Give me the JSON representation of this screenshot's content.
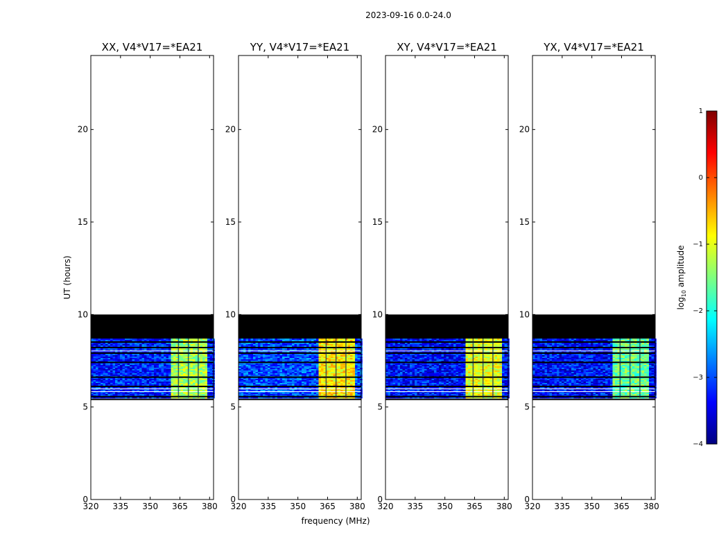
{
  "figure": {
    "suptitle": "2023-09-16 0.0-24.0",
    "xlabel": "frequency (MHz)",
    "ylabel": "UT (hours)"
  },
  "colorbar": {
    "label_main": "log",
    "label_sub": "10",
    "label_tail": " amplitude",
    "range": [
      -4,
      1
    ],
    "ticks": [
      "1",
      "0",
      "−1",
      "−2",
      "−3",
      "−4"
    ],
    "tick_values": [
      1,
      0,
      -1,
      -2,
      -3,
      -4
    ],
    "colormap": [
      "#00007f",
      "#0000ff",
      "#007fff",
      "#00ffff",
      "#7fff7f",
      "#ffff00",
      "#ff7f00",
      "#ff0000",
      "#7f0000"
    ]
  },
  "chart_data": {
    "type": "heatmap",
    "xlim": [
      320,
      382
    ],
    "ylim": [
      0,
      24
    ],
    "xticks": [
      320,
      335,
      350,
      365,
      380
    ],
    "xtick_labels": [
      "320",
      "335",
      "350",
      "365",
      "380"
    ],
    "yticks": [
      0,
      5,
      10,
      15,
      20
    ],
    "ytick_labels": [
      "0",
      "5",
      "10",
      "15",
      "20"
    ],
    "blank_region_hours": [
      [
        10,
        24
      ],
      [
        0,
        5.4
      ]
    ],
    "flagged_block_hours": [
      8.7,
      10.0
    ],
    "data_region_hours": [
      5.5,
      8.7
    ],
    "bright_band_mhz": [
      360,
      379
    ],
    "panels": [
      {
        "title": "XX, V4*V17=*EA21",
        "background_level": -3.2,
        "band_level": -1.3
      },
      {
        "title": "YY, V4*V17=*EA21",
        "background_level": -3.0,
        "band_level": -0.8
      },
      {
        "title": "XY, V4*V17=*EA21",
        "background_level": -3.3,
        "band_level": -1.0
      },
      {
        "title": "YX, V4*V17=*EA21",
        "background_level": -3.3,
        "band_level": -1.6
      }
    ]
  }
}
